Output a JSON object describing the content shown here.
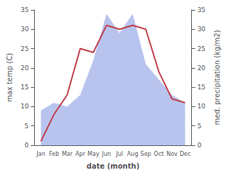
{
  "chart_data": {
    "type": "line",
    "categories": [
      "Jan",
      "Feb",
      "Mar",
      "Apr",
      "May",
      "Jun",
      "Jul",
      "Aug",
      "Sep",
      "Oct",
      "Nov",
      "Dec"
    ],
    "series": [
      {
        "type": "area",
        "color": "#b8c4ee",
        "values": [
          9,
          11,
          10,
          13,
          22,
          34,
          29,
          34,
          21,
          17,
          13,
          11
        ],
        "axis": "y2"
      },
      {
        "type": "line",
        "color": "#c0404a",
        "values": [
          1,
          8,
          13,
          25,
          24,
          31,
          30,
          31,
          30,
          19,
          12,
          11
        ]
      }
    ],
    "xlabel": "date (month)",
    "ylabel": "max temp (C)",
    "y2label": "med. precipitation (kg/m2)",
    "ylim": [
      0,
      35
    ],
    "yticks": [
      0,
      5,
      10,
      15,
      20,
      25,
      30,
      35
    ],
    "y2lim": [
      0,
      35
    ],
    "y2ticks": [
      0,
      5,
      10,
      15,
      20,
      25,
      30,
      35
    ],
    "grid": false
  }
}
